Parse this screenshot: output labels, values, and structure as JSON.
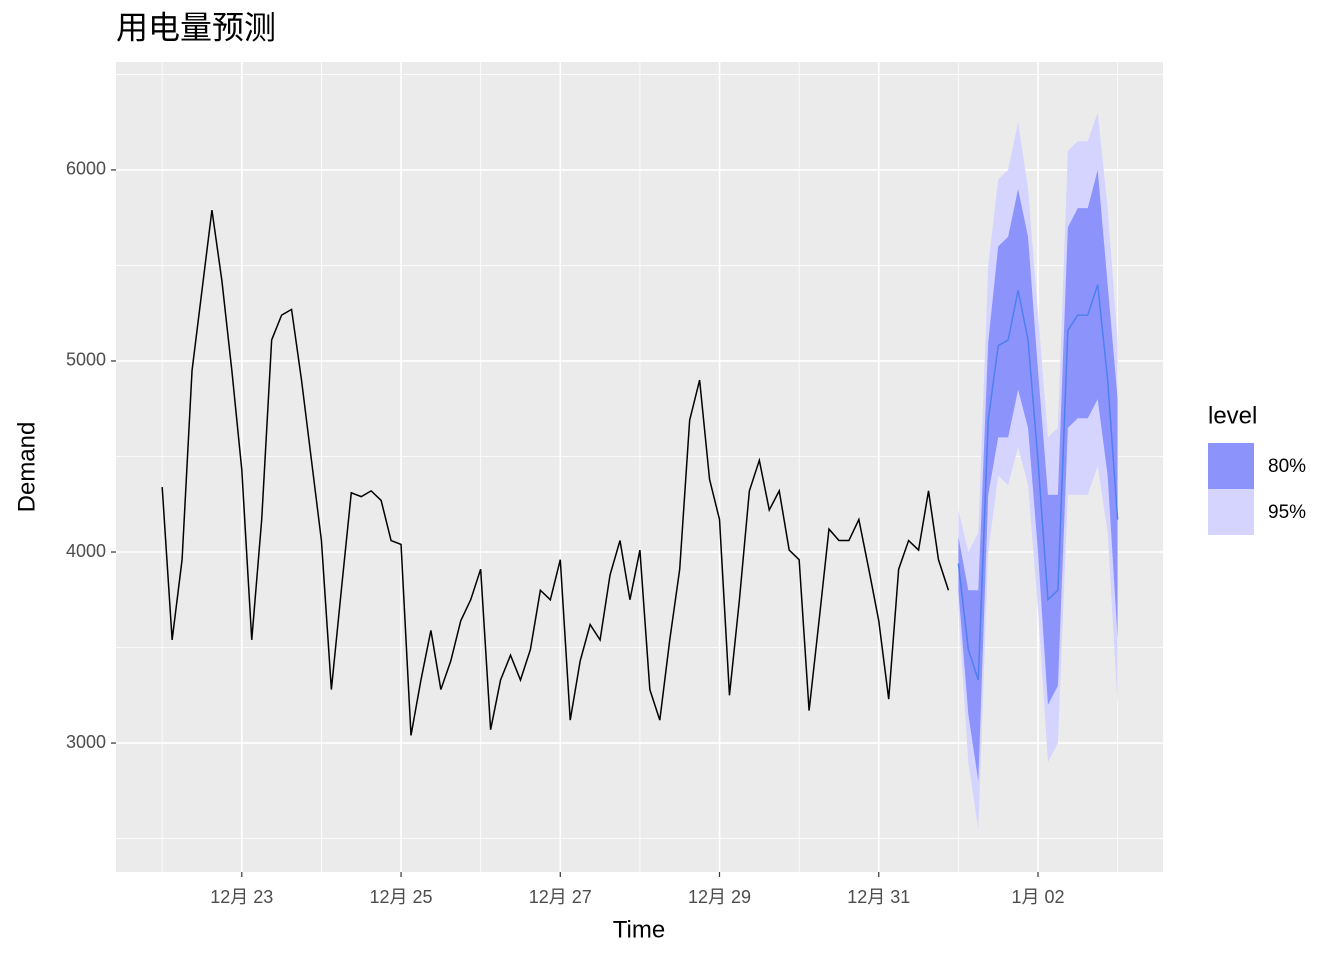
{
  "chart_data": {
    "type": "line",
    "title": "用电量预测",
    "x_label": "Time",
    "y_label": "Demand",
    "xlim": [
      21.42,
      34.57
    ],
    "ylim": [
      2325,
      6565
    ],
    "xticks": [
      {
        "value": 23,
        "label": "12月 23"
      },
      {
        "value": 25,
        "label": "12月 25"
      },
      {
        "value": 27,
        "label": "12月 27"
      },
      {
        "value": 29,
        "label": "12月 29"
      },
      {
        "value": 31,
        "label": "12月 31"
      },
      {
        "value": 33,
        "label": "1月 02"
      }
    ],
    "x_minor_grid": [
      22,
      24,
      26,
      28,
      30,
      32,
      34
    ],
    "yticks": [
      3000,
      4000,
      5000,
      6000
    ],
    "y_minor_grid": [
      2500,
      3500,
      4500,
      5500,
      6500
    ],
    "grid": true,
    "series": [
      {
        "color": "#000000",
        "x": [
          22.0,
          22.125,
          22.25,
          22.375,
          22.5,
          22.625,
          22.75,
          22.875,
          23.0,
          23.125,
          23.25,
          23.375,
          23.5,
          23.625,
          23.75,
          23.875,
          24.0,
          24.125,
          24.25,
          24.375,
          24.5,
          24.625,
          24.75,
          24.875,
          25.0,
          25.125,
          25.25,
          25.375,
          25.5,
          25.625,
          25.75,
          25.875,
          26.0,
          26.125,
          26.25,
          26.375,
          26.5,
          26.625,
          26.75,
          26.875,
          27.0,
          27.125,
          27.25,
          27.375,
          27.5,
          27.625,
          27.75,
          27.875,
          28.0,
          28.125,
          28.25,
          28.375,
          28.5,
          28.625,
          28.75,
          28.875,
          29.0,
          29.125,
          29.25,
          29.375,
          29.5,
          29.625,
          29.75,
          29.875,
          30.0,
          30.125,
          30.25,
          30.375,
          30.5,
          30.625,
          30.75,
          30.875,
          31.0,
          31.125,
          31.25,
          31.375,
          31.5,
          31.625,
          31.75,
          31.875
        ],
        "values": [
          4340,
          3540,
          3960,
          4950,
          5370,
          5790,
          5420,
          4950,
          4430,
          3540,
          4170,
          5110,
          5240,
          5270,
          4900,
          4480,
          4060,
          3280,
          3800,
          4310,
          4290,
          4320,
          4270,
          4060,
          4040,
          3040,
          3330,
          3590,
          3280,
          3430,
          3640,
          3750,
          3910,
          3070,
          3330,
          3460,
          3330,
          3490,
          3800,
          3750,
          3960,
          3120,
          3430,
          3620,
          3540,
          3880,
          4060,
          3750,
          4010,
          3280,
          3120,
          3540,
          3910,
          4690,
          4900,
          4380,
          4170,
          3250,
          3750,
          4320,
          4480,
          4220,
          4320,
          4010,
          3960,
          3170,
          3640,
          4120,
          4060,
          4060,
          4170,
          3910,
          3640,
          3230,
          3910,
          4060,
          4010,
          4320,
          3960,
          3800
        ]
      },
      {
        "color": "#4f7ff0",
        "x": [
          32.0,
          32.125,
          32.25,
          32.375,
          32.5,
          32.625,
          32.75,
          32.875,
          33.0,
          33.125,
          33.25,
          33.375,
          33.5,
          33.625,
          33.75,
          33.875,
          34.0
        ],
        "values": [
          3940,
          3490,
          3330,
          4690,
          5080,
          5110,
          5370,
          5110,
          4480,
          3750,
          3800,
          5160,
          5240,
          5240,
          5400,
          4900,
          4170
        ]
      }
    ],
    "legend_title": "level",
    "bands": [
      {
        "name": "80%",
        "color": "#8c94fc",
        "lower": [
          3800,
          3150,
          2800,
          4300,
          4600,
          4600,
          4850,
          4650,
          4000,
          3200,
          3300,
          4650,
          4700,
          4700,
          4800,
          4400,
          3550
        ],
        "upper": [
          4080,
          3800,
          3800,
          5100,
          5600,
          5650,
          5900,
          5650,
          4950,
          4300,
          4300,
          5700,
          5800,
          5800,
          6000,
          5400,
          4800
        ]
      },
      {
        "name": "95%",
        "color": "#d4d4ff",
        "lower": [
          3700,
          2900,
          2550,
          4000,
          4400,
          4350,
          4550,
          4350,
          3700,
          2900,
          3000,
          4300,
          4300,
          4300,
          4450,
          4100,
          3200
        ],
        "upper": [
          4220,
          4000,
          4100,
          5500,
          5950,
          6000,
          6250,
          5900,
          5250,
          4600,
          4650,
          6100,
          6150,
          6150,
          6300,
          5800,
          5100
        ]
      }
    ]
  }
}
